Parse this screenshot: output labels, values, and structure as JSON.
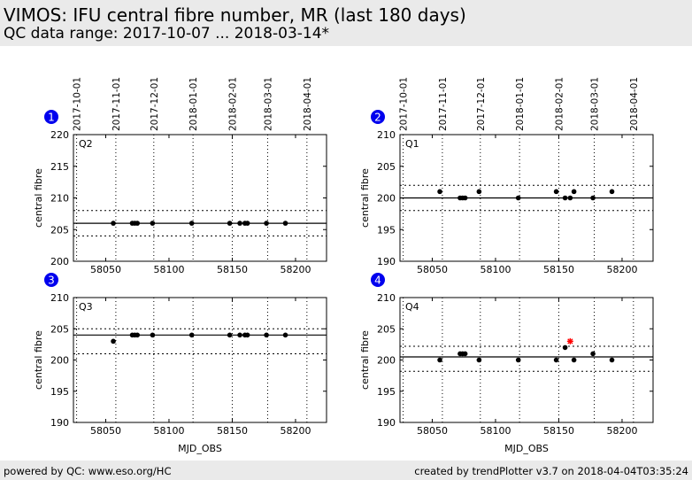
{
  "header": {
    "title": "VIMOS: IFU central fibre number, MR (last 180 days)",
    "subtitle": "QC data range: 2017-10-07 ... 2018-03-14*"
  },
  "footer": {
    "left": "powered by QC: www.eso.org/HC",
    "right": "created by trendPlotter v3.7 on 2018-04-04T03:35:24"
  },
  "colors": {
    "points": "#000000",
    "outlier": "#ff0000",
    "badge": "#0000ee"
  },
  "chart_data": [
    {
      "type": "scatter",
      "badge": "1",
      "panel_label": "Q2",
      "ylabel": "central fibre",
      "xlabel": "",
      "xlim": [
        58024.5,
        58224.5
      ],
      "ylim": [
        200,
        220
      ],
      "yticks": [
        200,
        205,
        210,
        215,
        220
      ],
      "xticks": [
        58050,
        58100,
        58150,
        58200
      ],
      "date_ticks": [
        "2017-10-01",
        "2017-11-01",
        "2017-12-01",
        "2018-01-01",
        "2018-02-01",
        "2018-03-01",
        "2018-04-01"
      ],
      "date_tick_mjd": [
        58027,
        58058,
        58088,
        58119,
        58150,
        58178,
        58209
      ],
      "mean": 206,
      "limits": [
        208,
        204
      ],
      "x": [
        58056,
        58071,
        58073,
        58075,
        58087,
        58118,
        58148,
        58156,
        58160,
        58162,
        58177,
        58192
      ],
      "y": [
        206,
        206,
        206,
        206,
        206,
        206,
        206,
        206,
        206,
        206,
        206,
        206
      ],
      "outliers": []
    },
    {
      "type": "scatter",
      "badge": "2",
      "panel_label": "Q1",
      "ylabel": "central fibre",
      "xlabel": "",
      "xlim": [
        58024.5,
        58224.5
      ],
      "ylim": [
        190,
        210
      ],
      "yticks": [
        190,
        195,
        200,
        205,
        210
      ],
      "xticks": [
        58050,
        58100,
        58150,
        58200
      ],
      "date_ticks": [
        "2017-10-01",
        "2017-11-01",
        "2017-12-01",
        "2018-01-01",
        "2018-02-01",
        "2018-03-01",
        "2018-04-01"
      ],
      "date_tick_mjd": [
        58027,
        58058,
        58088,
        58119,
        58150,
        58178,
        58209
      ],
      "mean": 200,
      "limits": [
        202,
        198
      ],
      "x": [
        58056,
        58072,
        58074,
        58076,
        58087,
        58118,
        58148,
        58155,
        58159,
        58162,
        58177,
        58192
      ],
      "y": [
        201,
        200,
        200,
        200,
        201,
        200,
        201,
        200,
        200,
        201,
        200,
        201
      ],
      "outliers": []
    },
    {
      "type": "scatter",
      "badge": "3",
      "panel_label": "Q3",
      "ylabel": "central fibre",
      "xlabel": "MJD_OBS",
      "xlim": [
        58024.5,
        58224.5
      ],
      "ylim": [
        190,
        210
      ],
      "yticks": [
        190,
        195,
        200,
        205,
        210
      ],
      "xticks": [
        58050,
        58100,
        58150,
        58200
      ],
      "mean": 204,
      "limits": [
        205,
        201
      ],
      "x": [
        58056,
        58071,
        58073,
        58075,
        58087,
        58118,
        58148,
        58156,
        58160,
        58162,
        58177,
        58192
      ],
      "y": [
        203,
        204,
        204,
        204,
        204,
        204,
        204,
        204,
        204,
        204,
        204,
        204
      ],
      "outliers": []
    },
    {
      "type": "scatter",
      "badge": "4",
      "panel_label": "Q4",
      "ylabel": "central fibre",
      "xlabel": "MJD_OBS",
      "xlim": [
        58024.5,
        58224.5
      ],
      "ylim": [
        190,
        210
      ],
      "yticks": [
        190,
        195,
        200,
        205,
        210
      ],
      "xticks": [
        58050,
        58100,
        58150,
        58200
      ],
      "mean": 200.5,
      "limits": [
        202.2,
        198.2
      ],
      "x": [
        58056,
        58072,
        58074,
        58076,
        58087,
        58118,
        58148,
        58155,
        58162,
        58177,
        58192
      ],
      "y": [
        200,
        201,
        201,
        201,
        200,
        200,
        200,
        202,
        200,
        201,
        200
      ],
      "outliers": [
        {
          "x": 58159,
          "y": 203
        }
      ]
    }
  ]
}
